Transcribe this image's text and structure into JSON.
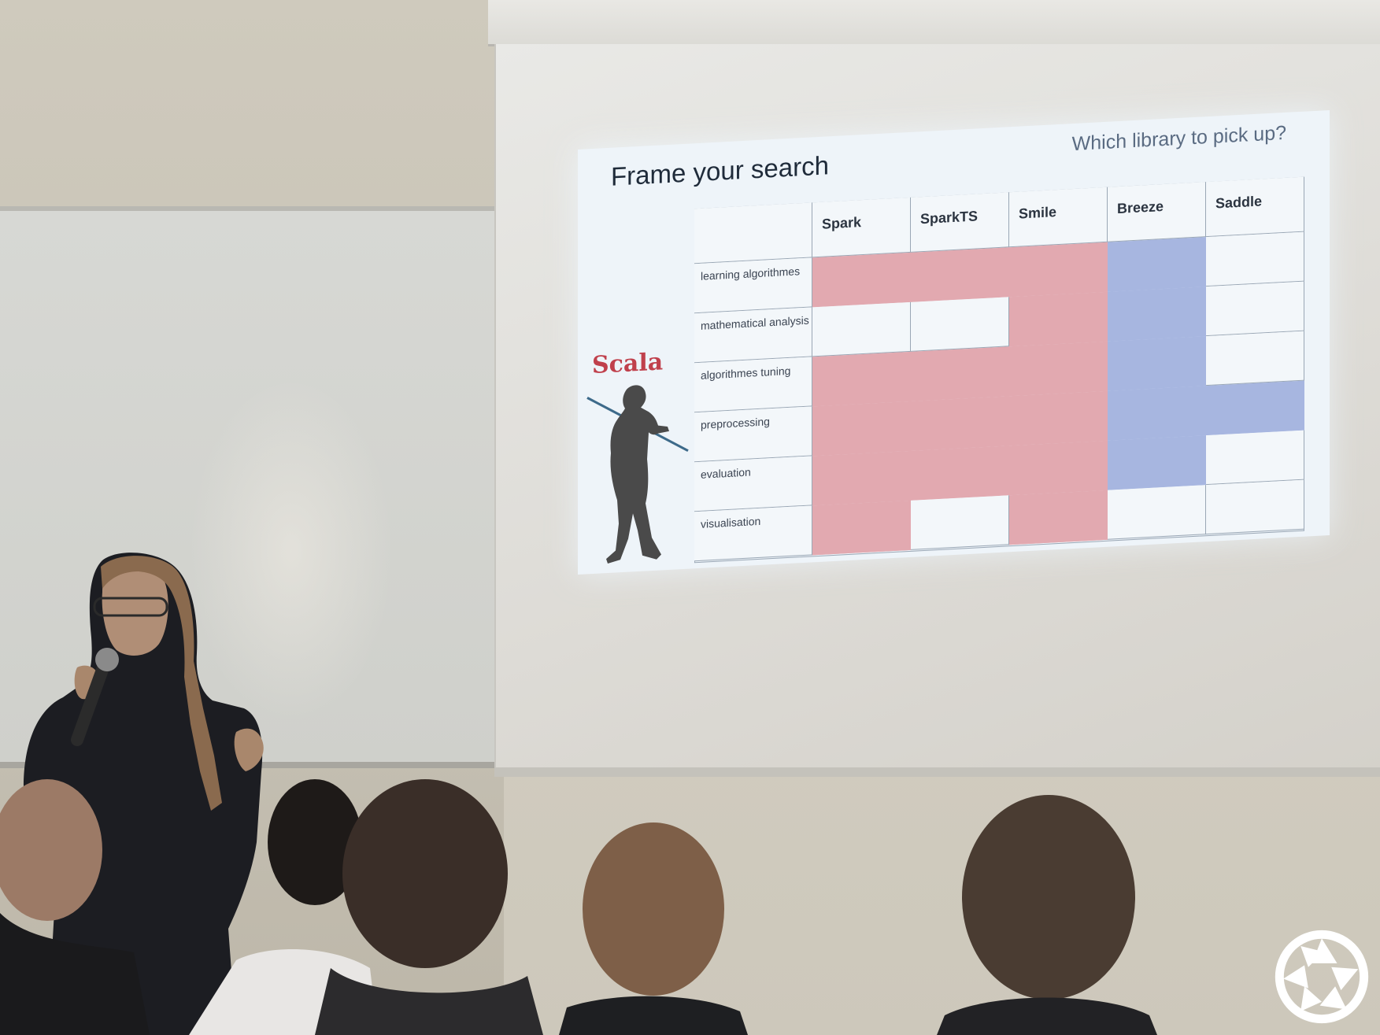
{
  "slide": {
    "title": "Frame your search",
    "subtitle": "Which library to pick up?",
    "language_label": "Scala",
    "table": {
      "columns": [
        "Spark",
        "SparkTS",
        "Smile",
        "Breeze",
        "Saddle"
      ],
      "rows": [
        "learning algorithmes",
        "mathematical analysis",
        "algorithmes tuning",
        "preprocessing",
        "evaluation",
        "visualisation"
      ],
      "fill": [
        [
          "red",
          "red",
          "red",
          "blue",
          "none"
        ],
        [
          "none",
          "none",
          "red",
          "blue",
          "none"
        ],
        [
          "red",
          "red",
          "red",
          "blue",
          "none"
        ],
        [
          "red",
          "red",
          "red",
          "blue",
          "blue"
        ],
        [
          "red",
          "red",
          "red",
          "blue",
          "none"
        ],
        [
          "red",
          "none",
          "red",
          "none",
          "none"
        ]
      ]
    },
    "colors": {
      "red": "#e2a9b0",
      "blue": "#a7b6e0",
      "none": "#f3f7fa"
    }
  },
  "scene": {
    "description_icons": [
      "presenter-silhouette",
      "microphone-icon",
      "audience-heads",
      "aperture-logo-icon"
    ]
  }
}
